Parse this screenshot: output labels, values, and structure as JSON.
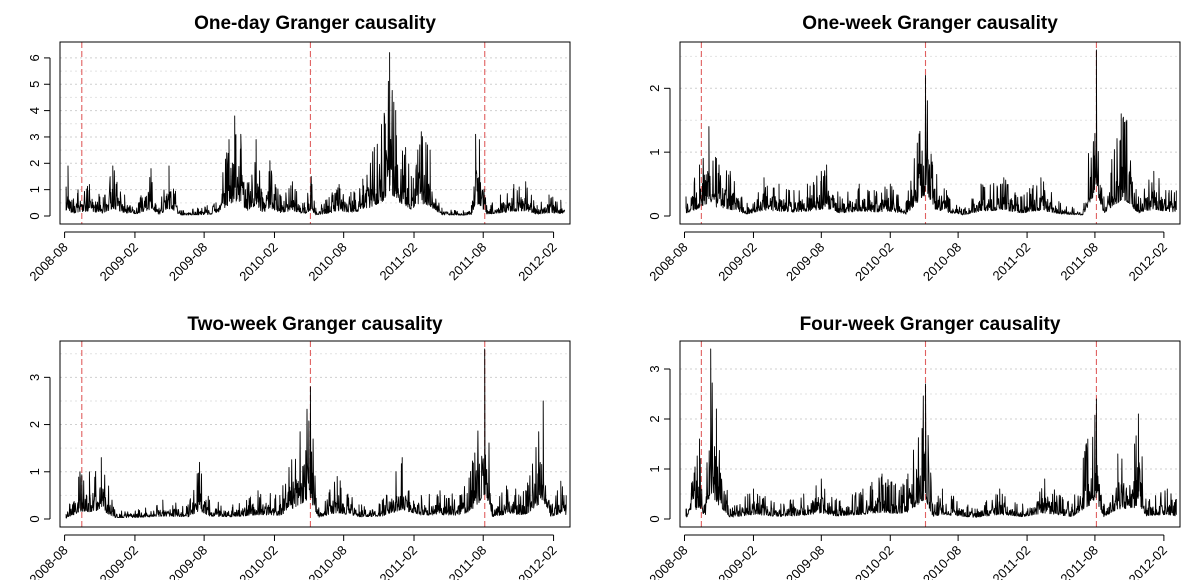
{
  "chart_data": [
    {
      "type": "line",
      "title": "One-day Granger causality",
      "x_ticks": [
        "2008-08",
        "2009-02",
        "2009-08",
        "2010-02",
        "2010-08",
        "2011-02",
        "2011-08",
        "2012-02"
      ],
      "y_ticks": [
        "0",
        "1",
        "2",
        "3",
        "4",
        "5",
        "6"
      ],
      "ylim": [
        0,
        6.3
      ],
      "xlim": [
        "2008-07-20",
        "2012-03-15"
      ],
      "grid": "horizontal dotted",
      "event_lines": [
        "2008-09-15",
        "2010-05-06",
        "2011-08-05"
      ],
      "event_line_color": "#e06060",
      "series_color": "#000000",
      "series": [
        {
          "anchors": [
            [
              "2008-08-05",
              1.1
            ],
            [
              "2008-08-10",
              1.9
            ],
            [
              "2008-08-20",
              0.6
            ],
            [
              "2008-09-05",
              1.0
            ],
            [
              "2008-10-05",
              1.2
            ],
            [
              "2008-11-10",
              0.7
            ],
            [
              "2008-12-05",
              1.9
            ],
            [
              "2009-01-05",
              0.8
            ],
            [
              "2009-02-10",
              0.5
            ],
            [
              "2009-03-15",
              1.8
            ],
            [
              "2009-04-05",
              0.3
            ],
            [
              "2009-05-01",
              1.9
            ],
            [
              "2009-06-01",
              0.2
            ],
            [
              "2009-07-15",
              0.3
            ],
            [
              "2009-09-01",
              0.5
            ],
            [
              "2009-10-05",
              2.9
            ],
            [
              "2009-10-20",
              3.8
            ],
            [
              "2009-11-05",
              3.1
            ],
            [
              "2009-11-25",
              1.2
            ],
            [
              "2009-12-15",
              2.9
            ],
            [
              "2010-01-01",
              0.7
            ],
            [
              "2010-01-20",
              2.1
            ],
            [
              "2010-02-15",
              0.8
            ],
            [
              "2010-03-20",
              1.3
            ],
            [
              "2010-04-20",
              0.5
            ],
            [
              "2010-05-08",
              1.5
            ],
            [
              "2010-05-20",
              0.3
            ],
            [
              "2010-06-15",
              0.6
            ],
            [
              "2010-07-20",
              1.2
            ],
            [
              "2010-08-20",
              0.9
            ],
            [
              "2010-09-20",
              1.4
            ],
            [
              "2010-10-20",
              2.6
            ],
            [
              "2010-11-15",
              3.9
            ],
            [
              "2010-11-29",
              6.2
            ],
            [
              "2010-12-15",
              4.0
            ],
            [
              "2011-01-10",
              2.6
            ],
            [
              "2011-01-25",
              1.5
            ],
            [
              "2011-02-20",
              3.2
            ],
            [
              "2011-03-15",
              2.5
            ],
            [
              "2011-04-15",
              0.3
            ],
            [
              "2011-06-10",
              0.2
            ],
            [
              "2011-07-01",
              0.4
            ],
            [
              "2011-07-12",
              3.1
            ],
            [
              "2011-07-22",
              2.9
            ],
            [
              "2011-08-10",
              0.4
            ],
            [
              "2011-09-15",
              0.8
            ],
            [
              "2011-10-20",
              1.2
            ],
            [
              "2011-11-20",
              1.3
            ],
            [
              "2011-12-20",
              0.4
            ],
            [
              "2012-01-20",
              0.8
            ],
            [
              "2012-02-20",
              0.6
            ],
            [
              "2012-03-01",
              0.2
            ]
          ]
        }
      ]
    },
    {
      "type": "line",
      "title": "One-week Granger causality",
      "x_ticks": [
        "2008-08",
        "2009-02",
        "2009-08",
        "2010-02",
        "2010-08",
        "2011-02",
        "2011-08",
        "2012-02"
      ],
      "y_ticks": [
        "0",
        "1",
        "2"
      ],
      "ylim": [
        0,
        2.6
      ],
      "xlim": [
        "2008-07-20",
        "2012-03-15"
      ],
      "grid": "horizontal dotted",
      "event_lines": [
        "2008-09-15",
        "2010-05-06",
        "2011-08-05"
      ],
      "event_line_color": "#e06060",
      "series_color": "#000000",
      "series": [
        {
          "anchors": [
            [
              "2008-08-05",
              0.3
            ],
            [
              "2008-09-10",
              0.8
            ],
            [
              "2008-10-05",
              1.4
            ],
            [
              "2008-10-25",
              0.9
            ],
            [
              "2008-12-01",
              0.7
            ],
            [
              "2009-01-15",
              0.2
            ],
            [
              "2009-03-01",
              0.6
            ],
            [
              "2009-04-10",
              0.5
            ],
            [
              "2009-05-20",
              0.4
            ],
            [
              "2009-06-25",
              0.5
            ],
            [
              "2009-08-01",
              0.7
            ],
            [
              "2009-08-15",
              0.8
            ],
            [
              "2009-09-20",
              0.3
            ],
            [
              "2009-11-10",
              0.5
            ],
            [
              "2009-12-20",
              0.4
            ],
            [
              "2010-02-01",
              0.5
            ],
            [
              "2010-03-15",
              0.2
            ],
            [
              "2010-05-06",
              2.2
            ],
            [
              "2010-05-25",
              0.8
            ],
            [
              "2010-07-01",
              0.4
            ],
            [
              "2010-08-15",
              0.1
            ],
            [
              "2010-10-01",
              0.5
            ],
            [
              "2010-12-01",
              0.6
            ],
            [
              "2011-01-15",
              0.3
            ],
            [
              "2011-03-10",
              0.6
            ],
            [
              "2011-05-01",
              0.2
            ],
            [
              "2011-07-01",
              0.1
            ],
            [
              "2011-08-05",
              2.6
            ],
            [
              "2011-08-25",
              0.3
            ],
            [
              "2011-10-10",
              1.6
            ],
            [
              "2011-10-25",
              1.5
            ],
            [
              "2011-11-25",
              0.3
            ],
            [
              "2012-01-05",
              0.7
            ],
            [
              "2012-02-15",
              0.4
            ],
            [
              "2012-03-05",
              0.4
            ]
          ]
        }
      ]
    },
    {
      "type": "line",
      "title": "Two-week Granger causality",
      "x_ticks": [
        "2008-08",
        "2009-02",
        "2009-08",
        "2010-02",
        "2010-08",
        "2011-02",
        "2011-08",
        "2012-02"
      ],
      "y_ticks": [
        "0",
        "1",
        "2",
        "3"
      ],
      "ylim": [
        0,
        3.6
      ],
      "xlim": [
        "2008-07-20",
        "2012-03-15"
      ],
      "grid": "horizontal dotted",
      "event_lines": [
        "2008-09-15",
        "2010-05-06",
        "2011-08-05"
      ],
      "event_line_color": "#e06060",
      "series_color": "#000000",
      "series": [
        {
          "anchors": [
            [
              "2008-08-05",
              0.1
            ],
            [
              "2008-09-10",
              1.0
            ],
            [
              "2008-10-05",
              1.0
            ],
            [
              "2008-11-05",
              1.3
            ],
            [
              "2008-12-10",
              0.2
            ],
            [
              "2009-02-10",
              0.2
            ],
            [
              "2009-04-15",
              0.4
            ],
            [
              "2009-06-20",
              0.3
            ],
            [
              "2009-07-20",
              1.2
            ],
            [
              "2009-08-15",
              0.4
            ],
            [
              "2009-10-15",
              0.3
            ],
            [
              "2009-12-20",
              0.6
            ],
            [
              "2010-02-15",
              0.5
            ],
            [
              "2010-05-06",
              2.8
            ],
            [
              "2010-05-25",
              0.2
            ],
            [
              "2010-07-15",
              0.9
            ],
            [
              "2010-09-10",
              0.3
            ],
            [
              "2010-11-10",
              0.4
            ],
            [
              "2011-01-01",
              1.3
            ],
            [
              "2011-02-20",
              0.5
            ],
            [
              "2011-04-10",
              0.6
            ],
            [
              "2011-06-01",
              0.5
            ],
            [
              "2011-07-10",
              1.4
            ],
            [
              "2011-08-05",
              3.6
            ],
            [
              "2011-08-25",
              0.3
            ],
            [
              "2011-10-01",
              0.7
            ],
            [
              "2011-11-20",
              0.6
            ],
            [
              "2012-01-05",
              2.5
            ],
            [
              "2012-01-25",
              0.3
            ],
            [
              "2012-02-20",
              0.8
            ],
            [
              "2012-03-05",
              0.5
            ]
          ]
        }
      ]
    },
    {
      "type": "line",
      "title": "Four-week Granger causality",
      "x_ticks": [
        "2008-08",
        "2009-02",
        "2009-08",
        "2010-02",
        "2010-08",
        "2011-02",
        "2011-08",
        "2012-02"
      ],
      "y_ticks": [
        "0",
        "1",
        "2",
        "3"
      ],
      "ylim": [
        0,
        3.4
      ],
      "xlim": [
        "2008-07-20",
        "2012-03-15"
      ],
      "grid": "horizontal dotted",
      "event_lines": [
        "2008-09-15",
        "2010-05-06",
        "2011-08-05"
      ],
      "event_line_color": "#e06060",
      "series_color": "#000000",
      "series": [
        {
          "anchors": [
            [
              "2008-08-05",
              0.2
            ],
            [
              "2008-09-10",
              1.6
            ],
            [
              "2008-09-25",
              0.3
            ],
            [
              "2008-10-10",
              3.4
            ],
            [
              "2008-10-25",
              2.2
            ],
            [
              "2008-12-01",
              0.2
            ],
            [
              "2009-02-01",
              0.6
            ],
            [
              "2009-04-15",
              0.3
            ],
            [
              "2009-06-15",
              0.5
            ],
            [
              "2009-08-01",
              0.8
            ],
            [
              "2009-09-10",
              0.4
            ],
            [
              "2009-11-20",
              0.6
            ],
            [
              "2010-01-10",
              0.9
            ],
            [
              "2010-02-15",
              0.7
            ],
            [
              "2010-03-20",
              0.9
            ],
            [
              "2010-05-06",
              2.7
            ],
            [
              "2010-05-25",
              0.3
            ],
            [
              "2010-06-20",
              0.6
            ],
            [
              "2010-09-15",
              0.2
            ],
            [
              "2010-11-20",
              0.6
            ],
            [
              "2011-01-20",
              0.3
            ],
            [
              "2011-03-20",
              0.8
            ],
            [
              "2011-06-01",
              0.3
            ],
            [
              "2011-08-05",
              2.4
            ],
            [
              "2011-08-25",
              0.3
            ],
            [
              "2011-10-01",
              1.3
            ],
            [
              "2011-11-15",
              1.5
            ],
            [
              "2011-11-25",
              2.1
            ],
            [
              "2011-12-15",
              0.4
            ],
            [
              "2012-02-10",
              0.6
            ],
            [
              "2012-03-05",
              0.4
            ]
          ]
        }
      ]
    }
  ]
}
